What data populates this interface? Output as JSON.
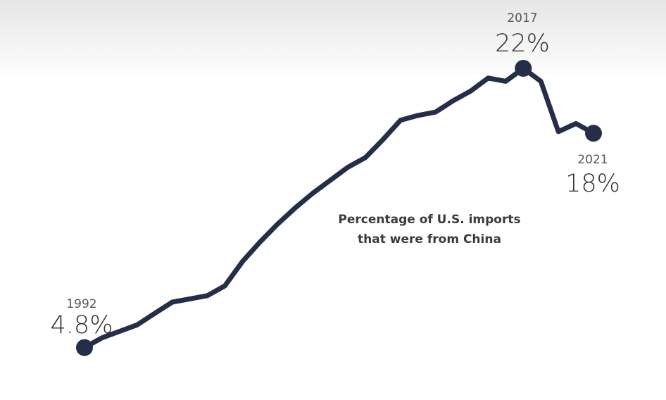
{
  "colors": {
    "line": "#252e48",
    "marker": "#252e48"
  },
  "chart_data": {
    "type": "line",
    "x": [
      1992,
      1993,
      1994,
      1995,
      1996,
      1997,
      1998,
      1999,
      2000,
      2001,
      2002,
      2003,
      2004,
      2005,
      2006,
      2007,
      2008,
      2009,
      2010,
      2011,
      2012,
      2013,
      2014,
      2015,
      2016,
      2017,
      2018,
      2019,
      2020,
      2021
    ],
    "values": [
      4.8,
      5.4,
      5.8,
      6.2,
      6.9,
      7.6,
      7.8,
      8.0,
      8.6,
      10.1,
      11.3,
      12.4,
      13.4,
      14.3,
      15.1,
      15.9,
      16.5,
      17.6,
      18.8,
      19.1,
      19.3,
      20.0,
      20.6,
      21.4,
      21.2,
      22.0,
      21.2,
      18.1,
      18.6,
      18.0
    ],
    "ylim": [
      4.0,
      22.0
    ],
    "line_label": [
      "Percentage of U.S. imports",
      "that were from China"
    ],
    "annotations": [
      {
        "year": "1992",
        "value": "4.8%"
      },
      {
        "year": "2017",
        "value": "22%"
      },
      {
        "year": "2021",
        "value": "18%"
      }
    ]
  }
}
